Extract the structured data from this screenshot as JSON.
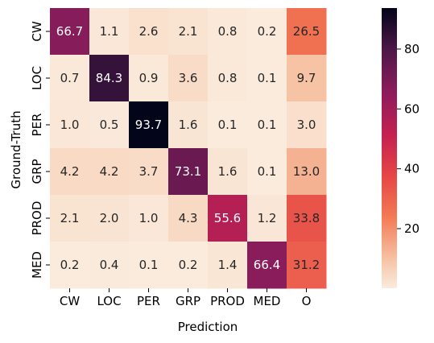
{
  "chart_data": {
    "type": "heatmap",
    "title": "",
    "xlabel": "Prediction",
    "ylabel": "Ground-Truth",
    "x_categories": [
      "CW",
      "LOC",
      "PER",
      "GRP",
      "PROD",
      "MED",
      "O"
    ],
    "y_categories": [
      "CW",
      "LOC",
      "PER",
      "GRP",
      "PROD",
      "MED"
    ],
    "values": [
      [
        66.7,
        1.1,
        2.6,
        2.1,
        0.8,
        0.2,
        26.5
      ],
      [
        0.7,
        84.3,
        0.9,
        3.6,
        0.8,
        0.1,
        9.7
      ],
      [
        1.0,
        0.5,
        93.7,
        1.6,
        0.1,
        0.1,
        3.0
      ],
      [
        4.2,
        4.2,
        3.7,
        73.1,
        1.6,
        0.1,
        13.0
      ],
      [
        2.1,
        2.0,
        1.0,
        4.3,
        55.6,
        1.2,
        33.8
      ],
      [
        0.2,
        0.4,
        0.1,
        0.2,
        1.4,
        66.4,
        31.2
      ]
    ],
    "colormap": "rocket_r",
    "colorbar": {
      "range": [
        0.1,
        93.7
      ],
      "ticks": [
        20,
        40,
        60,
        80
      ]
    }
  }
}
